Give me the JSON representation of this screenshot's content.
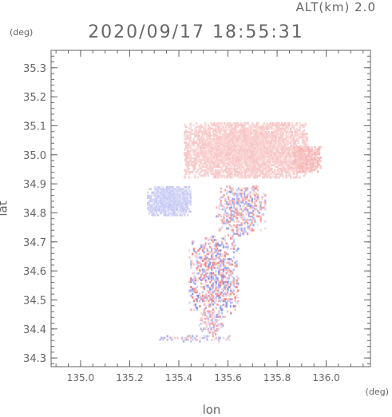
{
  "header": {
    "altitude_label": "ALT(km) 2.0",
    "timestamp": "2020/09/17 18:55:31",
    "lat_unit": "(deg)",
    "lon_unit": "(deg)"
  },
  "chart_data": {
    "type": "heatmap",
    "title": "2020/09/17 18:55:31",
    "xlabel": "lon",
    "ylabel": "lat",
    "xlim": [
      134.88,
      136.18
    ],
    "ylim": [
      34.27,
      35.36
    ],
    "x_ticks": [
      135.0,
      135.2,
      135.4,
      135.6,
      135.8,
      136.0
    ],
    "x_tick_labels": [
      "135.0",
      "135.2",
      "135.4",
      "135.6",
      "135.8",
      "136.0"
    ],
    "y_ticks": [
      34.3,
      34.4,
      34.5,
      34.6,
      34.7,
      34.8,
      34.9,
      35.0,
      35.1,
      35.2,
      35.3
    ],
    "y_tick_labels": [
      "34.3",
      "34.4",
      "34.5",
      "34.6",
      "34.7",
      "34.8",
      "34.9",
      "35.0",
      "35.1",
      "35.2",
      "35.3"
    ],
    "grid": false,
    "colors": {
      "positive": "#f4a0a0",
      "negative": "#a0a8f0",
      "strong_positive": "#e85a5a",
      "strong_negative": "#5a62e0"
    },
    "regions": [
      {
        "name": "north-band",
        "lon": [
          135.42,
          135.92
        ],
        "lat": [
          34.92,
          35.11
        ],
        "sign": "positive",
        "intensity": 0.35
      },
      {
        "name": "east-tip",
        "lon": [
          135.86,
          135.98
        ],
        "lat": [
          34.94,
          35.03
        ],
        "sign": "positive",
        "intensity": 0.45
      },
      {
        "name": "west-patch",
        "lon": [
          135.27,
          135.45
        ],
        "lat": [
          34.79,
          34.89
        ],
        "sign": "negative",
        "intensity": 0.35
      },
      {
        "name": "middle-scatter",
        "lon": [
          135.55,
          135.75
        ],
        "lat": [
          34.72,
          34.89
        ],
        "sign": "mixed",
        "intensity": 0.6
      },
      {
        "name": "south-body",
        "lon": [
          135.44,
          135.64
        ],
        "lat": [
          34.44,
          34.72
        ],
        "sign": "mixed",
        "intensity": 0.7
      },
      {
        "name": "south-tail",
        "lon": [
          135.48,
          135.58
        ],
        "lat": [
          34.38,
          34.46
        ],
        "sign": "mixed",
        "intensity": 0.6
      },
      {
        "name": "coast-line",
        "lon": [
          135.32,
          135.62
        ],
        "lat": [
          34.355,
          34.375
        ],
        "sign": "mixed",
        "intensity": 0.5
      }
    ]
  }
}
